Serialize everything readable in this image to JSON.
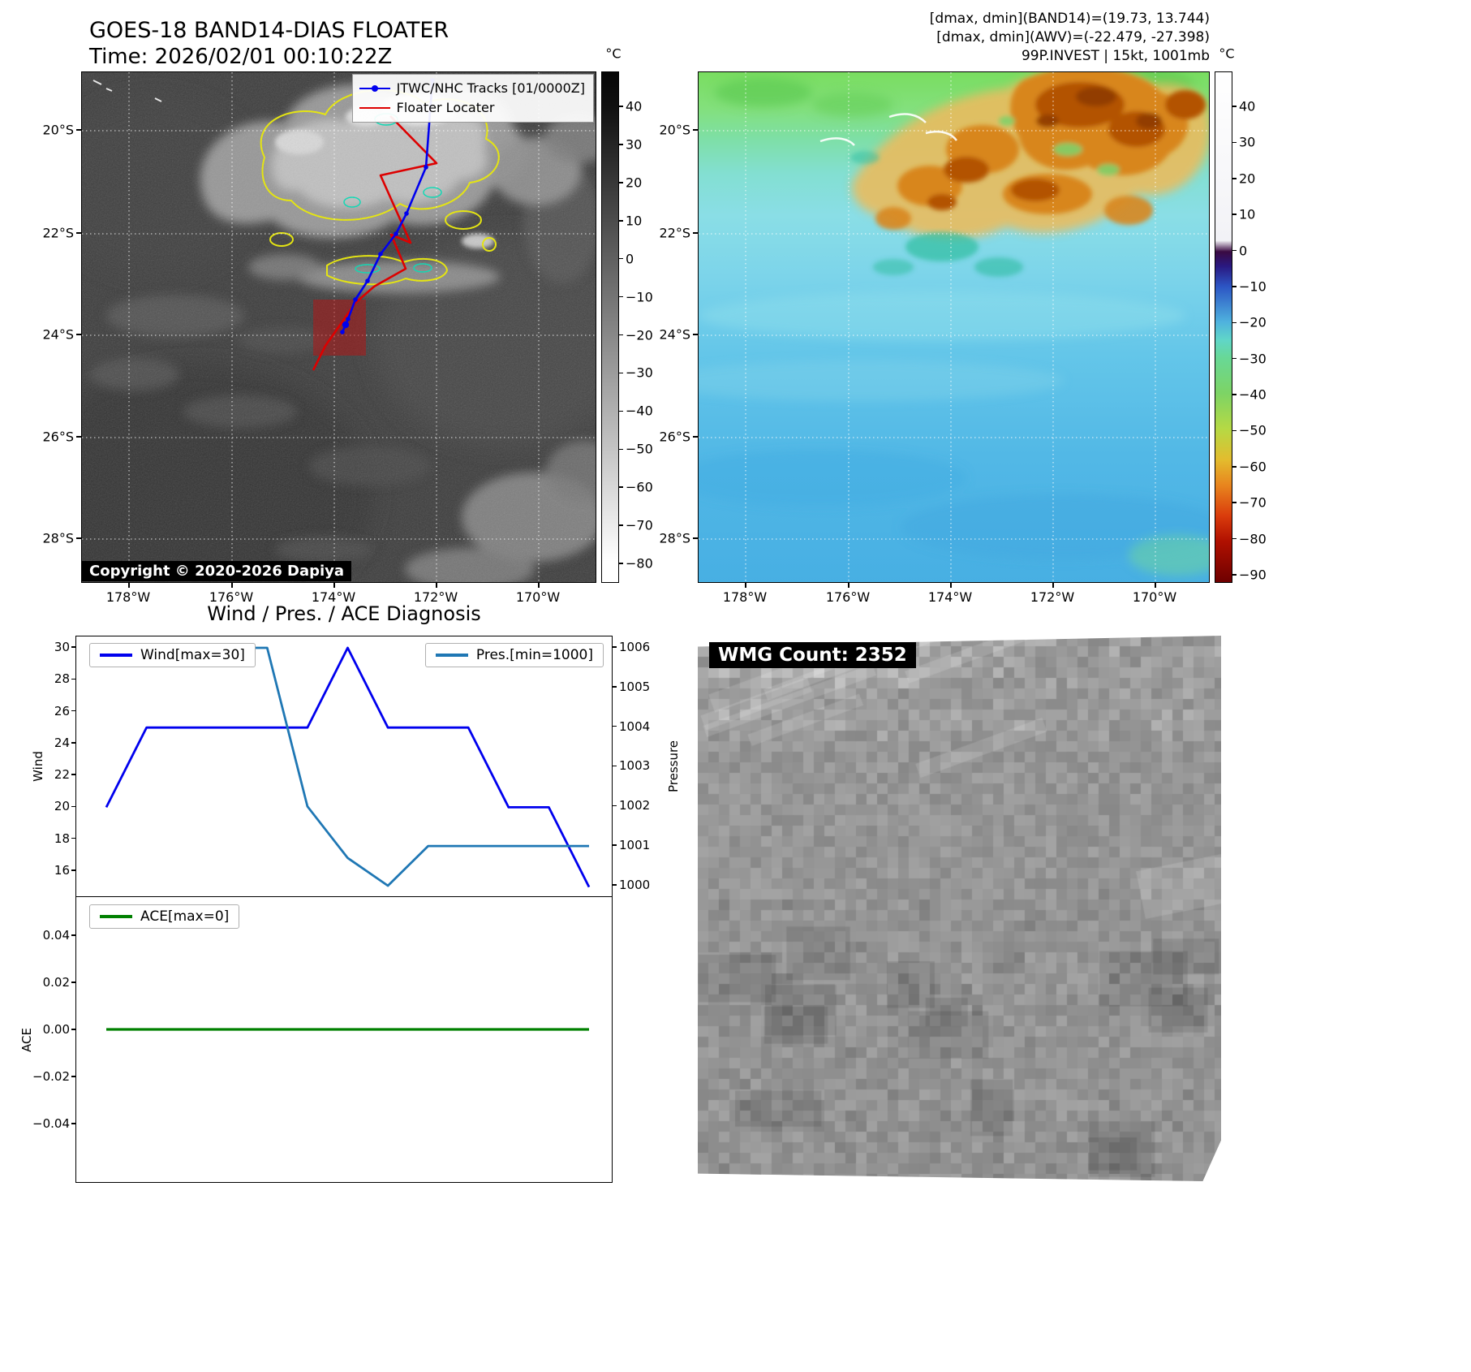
{
  "band14": {
    "title": "GOES-18 BAND14-DIAS FLOATER",
    "time_label": "Time: 2026/02/01 00:10:22Z",
    "legend": {
      "tracks": "JTWC/NHC Tracks [01/0000Z]",
      "floater": "Floater Locater"
    },
    "copyright": "Copyright © 2020-2026 Dapiya",
    "lat_ticks": [
      "20°S",
      "22°S",
      "24°S",
      "26°S",
      "28°S"
    ],
    "lon_ticks": [
      "178°W",
      "176°W",
      "174°W",
      "172°W",
      "170°W"
    ],
    "colorbar": {
      "unit": "°C",
      "ticks": [
        "40",
        "30",
        "20",
        "10",
        "0",
        "−10",
        "−20",
        "−30",
        "−40",
        "−50",
        "−60",
        "−70",
        "−80"
      ]
    },
    "colors": {
      "jtwc_track": "#0000ee",
      "floater_track": "#dd0000",
      "floater_box": "#b01818"
    }
  },
  "awv": {
    "info_lines": [
      "[dmax, dmin](BAND14)=(19.73, 13.744)",
      "[dmax, dmin](AWV)=(-22.479, -27.398)",
      "99P.INVEST | 15kt, 1001mb"
    ],
    "lat_ticks": [
      "20°S",
      "22°S",
      "24°S",
      "26°S",
      "28°S"
    ],
    "lon_ticks": [
      "178°W",
      "176°W",
      "174°W",
      "172°W",
      "170°W"
    ],
    "colorbar": {
      "unit": "°C",
      "ticks": [
        "40",
        "30",
        "20",
        "10",
        "0",
        "−10",
        "−20",
        "−30",
        "−40",
        "−50",
        "−60",
        "−70",
        "−80",
        "−90"
      ]
    }
  },
  "diagnosis": {
    "title": "Wind / Pres. / ACE Diagnosis",
    "wind_legend": "Wind[max=30]",
    "pres_legend": "Pres.[min=1000]",
    "ace_legend": "ACE[max=0]",
    "ylabel_wind": "Wind",
    "ylabel_pressure": "Pressure",
    "ylabel_ace": "ACE",
    "wind_ticks": [
      "30",
      "28",
      "26",
      "24",
      "22",
      "20",
      "18",
      "16"
    ],
    "pressure_ticks": [
      "1006",
      "1005",
      "1004",
      "1003",
      "1002",
      "1001",
      "1000"
    ],
    "ace_ticks": [
      "0.04",
      "0.02",
      "0.00",
      "−0.02",
      "−0.04"
    ]
  },
  "wmg": {
    "label": "WMG Count: 2352"
  },
  "chart_data": [
    {
      "type": "line",
      "title": "Wind / Pres. / ACE Diagnosis",
      "x": [
        0,
        1,
        2,
        3,
        4,
        5,
        6,
        7,
        8,
        9,
        10,
        11,
        12
      ],
      "series": [
        {
          "name": "Wind[max=30]",
          "axis": "left",
          "color": "#0000ee",
          "values": [
            20,
            25,
            25,
            25,
            25,
            25,
            30,
            25,
            25,
            25,
            20,
            20,
            15
          ]
        },
        {
          "name": "Pres.[min=1000]",
          "axis": "right",
          "color": "#1f77b4",
          "values": [
            1006,
            1006,
            1006,
            1006,
            1006,
            1002,
            1000.7,
            1000,
            1001,
            1001,
            1001,
            1001,
            1001
          ]
        }
      ],
      "ylabel_left": "Wind",
      "ylabel_right": "Pressure",
      "ylim_left": [
        14.3,
        30.8
      ],
      "ylim_right": [
        999.6,
        1006.35
      ],
      "grid": false,
      "legend_position": "upper-left and upper-right"
    },
    {
      "type": "line",
      "x": [
        0,
        12
      ],
      "series": [
        {
          "name": "ACE[max=0]",
          "color": "#008000",
          "values": [
            0,
            0
          ]
        }
      ],
      "ylabel": "ACE",
      "ylim": [
        -0.055,
        0.055
      ],
      "yticks": [
        -0.04,
        -0.02,
        0,
        0.02,
        0.04
      ],
      "grid": false
    }
  ],
  "tracks": {
    "jtwc": [
      [
        432,
        10
      ],
      [
        424,
        117
      ],
      [
        400,
        174
      ],
      [
        387,
        199
      ],
      [
        368,
        224
      ],
      [
        352,
        257
      ],
      [
        337,
        280
      ],
      [
        328,
        304
      ],
      [
        321,
        320
      ]
    ],
    "floater": [
      [
        380,
        54
      ],
      [
        437,
        112
      ],
      [
        368,
        127
      ],
      [
        405,
        210
      ],
      [
        381,
        200
      ],
      [
        399,
        242
      ],
      [
        360,
        264
      ],
      [
        337,
        284
      ],
      [
        319,
        310
      ],
      [
        300,
        337
      ],
      [
        285,
        367
      ]
    ],
    "floater_box": [
      285,
      280,
      65,
      69
    ],
    "current_point": [
      325,
      311
    ]
  }
}
